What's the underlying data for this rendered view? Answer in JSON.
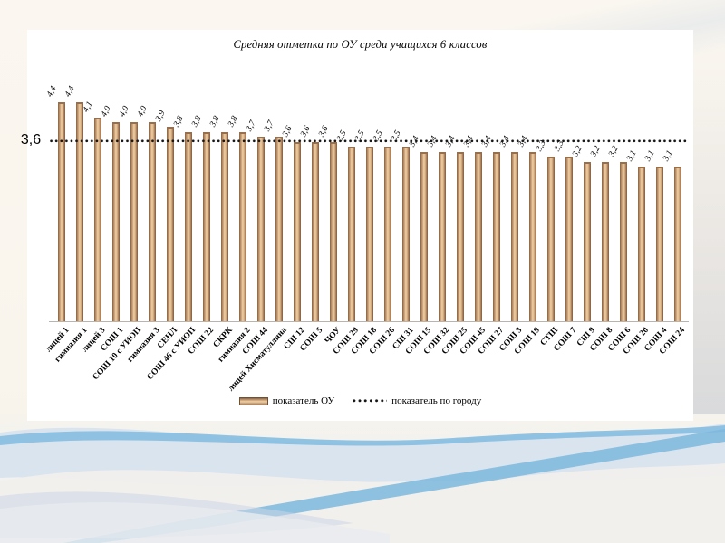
{
  "chart_data": {
    "type": "bar",
    "title": "Средняя отметка по ОУ среди учащихся 6 классов",
    "categories": [
      "лицей 1",
      "гимназия 1",
      "лицей 3",
      "СОШ 1",
      "СОШ 10 с УИОП",
      "гимназия 3",
      "СЕНЛ",
      "СОШ 46 с УИОП",
      "СОШ 22",
      "СКРК",
      "гимназия 2",
      "СОШ 44",
      "лицей Хисматуллина",
      "СШ 12",
      "СОШ 5",
      "ЧОУ",
      "СОШ 29",
      "СОШ 18",
      "СОШ 26",
      "СШ 31",
      "СОШ 15",
      "СОШ 32",
      "СОШ 25",
      "СОШ 45",
      "СОШ 27",
      "СОШ 3",
      "СОШ 19",
      "СТШ",
      "СОШ 7",
      "СШ 9",
      "СОШ 8",
      "СОШ 6",
      "СОШ 20",
      "СОШ 4",
      "СОШ 24"
    ],
    "values": [
      4.4,
      4.4,
      4.1,
      4.0,
      4.0,
      4.0,
      3.9,
      3.8,
      3.8,
      3.8,
      3.8,
      3.7,
      3.7,
      3.6,
      3.6,
      3.6,
      3.5,
      3.5,
      3.5,
      3.5,
      3.4,
      3.4,
      3.4,
      3.4,
      3.4,
      3.4,
      3.4,
      3.3,
      3.3,
      3.2,
      3.2,
      3.2,
      3.1,
      3.1,
      3.1
    ],
    "value_labels": [
      "4,4",
      "4,4",
      "4,1",
      "4,0",
      "4,0",
      "4,0",
      "3,9",
      "3,8",
      "3,8",
      "3,8",
      "3,8",
      "3,7",
      "3,7",
      "3,6",
      "3,6",
      "3,6",
      "3,5",
      "3,5",
      "3,5",
      "3,5",
      "3,4",
      "3,4",
      "3,4",
      "3,4",
      "3,4",
      "3,4",
      "3,4",
      "3,3",
      "3,3",
      "3,2",
      "3,2",
      "3,2",
      "3,1",
      "3,1",
      "3,1"
    ],
    "city_average": {
      "value": 3.6,
      "label": "3,6"
    },
    "ylim": [
      0,
      4.6
    ],
    "grid": false,
    "legend_position": "bottom",
    "legend": {
      "series_label": "показатель ОУ",
      "city_label": "показатель по городу"
    },
    "colors": {
      "bar_base": "#c79a6d",
      "bar_highlight": "#eed2ab",
      "bar_shadow": "#7d5b41",
      "dotted_line": "#161616",
      "panel_background": "#ffffff",
      "slide_background": "#fbf7f0",
      "wave_blue_bright": "#7db8dd",
      "wave_blue_pale": "#d7e2ee"
    }
  }
}
